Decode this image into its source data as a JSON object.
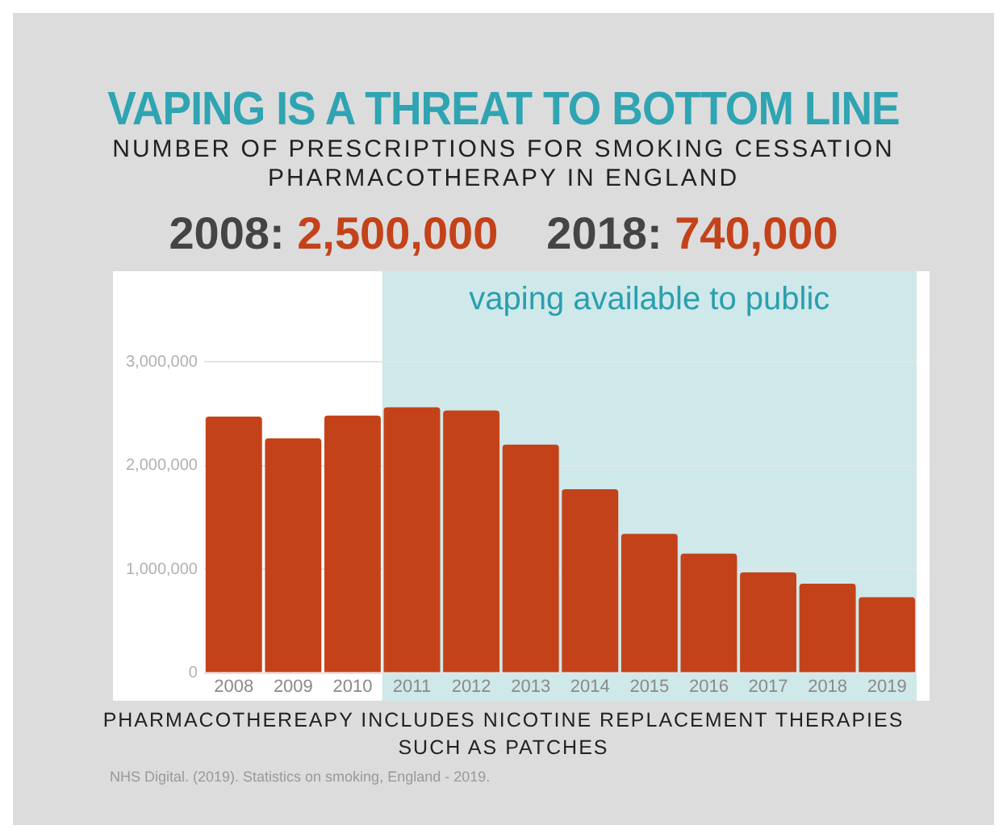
{
  "chart_data": {
    "type": "bar",
    "title": "VAPING IS A THREAT TO BOTTOM LINE",
    "subtitle": "NUMBER OF PRESCRIPTIONS FOR SMOKING CESSATION PHARMACOTHERAPY IN ENGLAND",
    "categories": [
      "2008",
      "2009",
      "2010",
      "2011",
      "2012",
      "2013",
      "2014",
      "2015",
      "2016",
      "2017",
      "2018",
      "2019"
    ],
    "values": [
      2470000,
      2260000,
      2480000,
      2560000,
      2530000,
      2200000,
      1770000,
      1340000,
      1150000,
      970000,
      860000,
      730000
    ],
    "color": "#c4421a",
    "ylim": [
      0,
      3000000
    ],
    "yticks": [
      {
        "value": 0,
        "label": "0"
      },
      {
        "value": 1000000,
        "label": "1,000,000"
      },
      {
        "value": 2000000,
        "label": "2,000,000"
      },
      {
        "value": 3000000,
        "label": "3,000,000"
      }
    ],
    "grid": "y",
    "bands": [
      {
        "axis": "x",
        "from": "2011",
        "to": "2019",
        "label": "vaping available to public",
        "color": "#cfe8ea"
      }
    ],
    "annotations": [
      "2008: 2,500,000",
      "2018: 740,000",
      "PHARMACOTHEREAPY INCLUDES NICOTINE REPLACEMENT THERAPIES SUCH AS PATCHES",
      "NHS Digital. (2019). Statistics on smoking, England - 2019."
    ]
  }
}
